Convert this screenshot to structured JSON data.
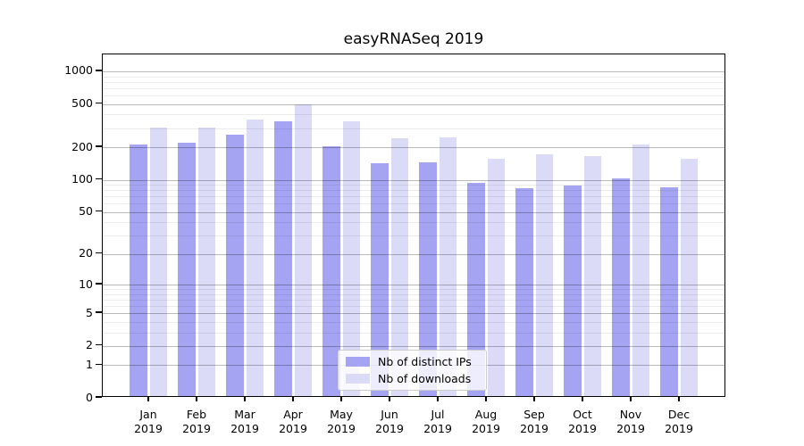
{
  "title": "easyRNASeq 2019",
  "chart_data": {
    "type": "bar",
    "title": "easyRNASeq 2019",
    "categories": [
      "Jan",
      "Feb",
      "Mar",
      "Apr",
      "May",
      "Jun",
      "Jul",
      "Aug",
      "Sep",
      "Oct",
      "Nov",
      "Dec"
    ],
    "category_year": "2019",
    "series": [
      {
        "name": "Nb of distinct IPs",
        "color": "#a4a4f2",
        "values": [
          205,
          212,
          252,
          336,
          197,
          136,
          139,
          90,
          81,
          85,
          99,
          82
        ]
      },
      {
        "name": "Nb of downloads",
        "color": "#dbdbf8",
        "values": [
          294,
          291,
          346,
          476,
          331,
          231,
          238,
          151,
          166,
          160,
          204,
          152
        ]
      }
    ],
    "xlabel": "",
    "ylabel": "",
    "y_axis": {
      "scale": "log10(value+1)",
      "ticks": [
        0,
        1,
        2,
        5,
        10,
        20,
        50,
        100,
        200,
        500,
        1000
      ],
      "minor_ticks": [
        3,
        4,
        6,
        7,
        8,
        9,
        30,
        40,
        60,
        70,
        80,
        90,
        300,
        400,
        600,
        700,
        800,
        900
      ],
      "ylim": [
        0,
        1390
      ]
    },
    "grid": true,
    "grid_on_top": true,
    "legend_position": "lower center"
  },
  "colors": {
    "bar_distinct_ips": "#a4a4f2",
    "bar_downloads": "#dbdbf8",
    "grid_major": "rgba(0,0,0,0.27)",
    "grid_minor": "rgba(0,0,0,0.08)",
    "spine": "#000000",
    "background": "#ffffff",
    "legend_border": "#cccccc"
  }
}
